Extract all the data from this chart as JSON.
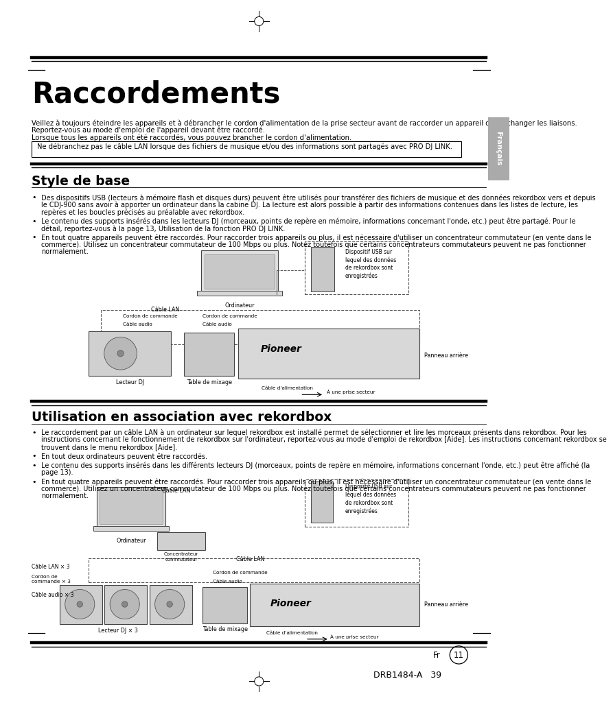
{
  "bg_color": "#ffffff",
  "page_width": 9.54,
  "page_height": 13.06,
  "title": "Raccordements",
  "subtitle_lines": [
    "Veillez à toujours éteindre les appareils et à débrancher le cordon d'alimentation de la prise secteur avant de raccorder un appareil ou de changer les liaisons.",
    "Reportez-vous au mode d'emploi de l'appareil devant être raccordé.",
    "Lorsque tous les appareils ont été raccordés, vous pouvez brancher le cordon d'alimentation."
  ],
  "warning_text": "Ne débranchez pas le câble LAN lorsque des fichiers de musique et/ou des informations sont partagés avec PRO DJ LINK.",
  "section1_title": "Style de base",
  "section1_bullets": [
    "Des dispositifs USB (lecteurs à mémoire flash et disques durs) peuvent être utilisés pour transférer des fichiers de musique et des données rekordbox vers et depuis\nle CDJ-900 sans avoir à apporter un ordinateur dans la cabine DJ. La lecture est alors possible à partir des informations contenues dans les listes de lecture, les\nrepères et les boucles précisés au préalable avec rekordbox.",
    "Le contenu des supports insérés dans les lecteurs DJ (morceaux, points de repère en mémoire, informations concernant l'onde, etc.) peut être partagé. Pour le\ndétail, reportez-vous à la page 13, Utilisation de la fonction PRO DJ LINK.",
    "En tout quatre appareils peuvent être raccordés. Pour raccorder trois appareils ou plus, il est nécessaire d'utiliser un concentrateur commutateur (en vente dans le\ncommerce). Utilisez un concentrateur commutateur de 100 Mbps ou plus. Notez toutefois que certains concentrateurs commutateurs peuvent ne pas fonctionner\nnormalement."
  ],
  "section2_title": "Utilisation en association avec rekordbox",
  "section2_bullets": [
    "Le raccordement par un câble LAN à un ordinateur sur lequel rekordbox est installé permet de sélectionner et lire les morceaux présents dans rekordbox. Pour les\ninstructions concernant le fonctionnement de rekordbox sur l'ordinateur, reportez-vous au mode d'emploi de rekordbox [Aide]. Les instructions concernant rekordbox se\ntrouvent dans le menu rekordbox [Aide].",
    "En tout deux ordinateurs peuvent être raccordés.",
    "Le contenu des supports insérés dans les différents lecteurs DJ (morceaux, points de repère en mémoire, informations concernant l'onde, etc.) peut être affiché (la\npage 13).",
    "En tout quatre appareils peuvent être raccordés. Pour raccorder trois appareils ou plus, il est nécessaire d'utiliser un concentrateur commutateur (en vente dans le\ncommerce). Utilisez un concentrateur commutateur de 100 Mbps ou plus. Notez toutefois que certains concentrateurs commutateurs peuvent ne pas fonctionner\nnormalement."
  ],
  "sidebar_text": "Français",
  "footer_fr_text": "Fr",
  "footer_page_text": "11",
  "footer_drb_text": "DRB1484-A   39",
  "usb_label": "Dispositif USB sur\nlequel des données\nde rekordbox sont\nenregistrées"
}
